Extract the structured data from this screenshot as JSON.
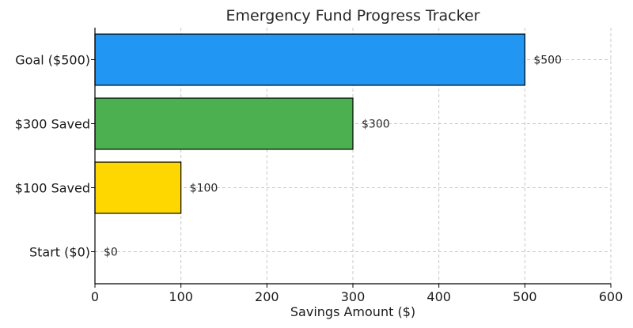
{
  "chart_data": {
    "type": "bar",
    "orientation": "horizontal",
    "title": "Emergency Fund Progress Tracker",
    "xlabel": "Savings Amount ($)",
    "ylabel": "",
    "categories": [
      "Start ($0)",
      "$100 Saved",
      "$300 Saved",
      "Goal ($500)"
    ],
    "values": [
      0,
      100,
      300,
      500
    ],
    "data_labels": [
      "$0",
      "$100",
      "$300",
      "$500"
    ],
    "colors": [
      "#ff6f61",
      "#ffd700",
      "#4caf50",
      "#2196f3"
    ],
    "xlim": [
      0,
      600
    ],
    "xticks": [
      0,
      100,
      200,
      300,
      400,
      500,
      600
    ],
    "grid": true
  }
}
